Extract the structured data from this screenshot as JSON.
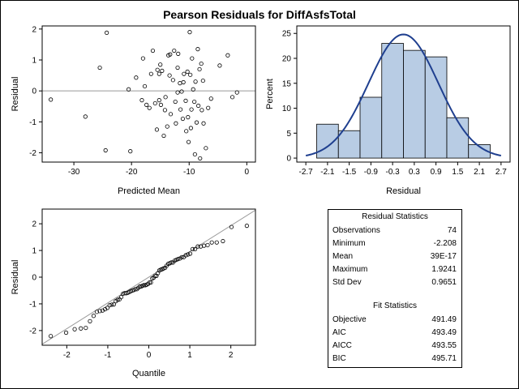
{
  "title": "Pearson Residuals for DiffAsfsTotal",
  "colors": {
    "bar_fill": "#b8cce4",
    "curve": "#1f3f8f",
    "ref_line": "#999999",
    "axis": "#000000"
  },
  "chart_data": [
    {
      "type": "scatter",
      "xlabel": "Predicted Mean",
      "ylabel": "Residual",
      "xlim": [
        -35.5,
        1.5
      ],
      "ylim": [
        -2.3,
        2.1
      ],
      "xticks": [
        -30,
        -20,
        -10,
        0
      ],
      "yticks": [
        -2,
        -1,
        0,
        1,
        2
      ],
      "reference_line_y": 0,
      "points": [
        [
          -34,
          -0.28
        ],
        [
          -28,
          -0.83
        ],
        [
          -25.5,
          0.75
        ],
        [
          -24.3,
          1.88
        ],
        [
          -24.5,
          -1.92
        ],
        [
          -20.2,
          -1.95
        ],
        [
          -20.5,
          0.05
        ],
        [
          -19.2,
          0.43
        ],
        [
          -18.2,
          -0.3
        ],
        [
          -18,
          1.05
        ],
        [
          -17.7,
          0.15
        ],
        [
          -17.4,
          -0.45
        ],
        [
          -16.6,
          0.55
        ],
        [
          -16.3,
          1.3
        ],
        [
          -15.9,
          -0.4
        ],
        [
          -15.6,
          -1.25
        ],
        [
          -15.5,
          0.68
        ],
        [
          -15.2,
          0.55
        ],
        [
          -15.0,
          0.85
        ],
        [
          -14.7,
          0.65
        ],
        [
          -14.9,
          -0.45
        ],
        [
          -14.4,
          -1.45
        ],
        [
          -14.1,
          -0.2
        ],
        [
          -14.2,
          -0.62
        ],
        [
          -13.8,
          -1.15
        ],
        [
          -13.6,
          1.15
        ],
        [
          -13.4,
          0.5
        ],
        [
          -13.3,
          1.18
        ],
        [
          -12.8,
          0.35
        ],
        [
          -12.6,
          1.3
        ],
        [
          -12.4,
          -0.35
        ],
        [
          -12.3,
          -1.05
        ],
        [
          -12.0,
          0.75
        ],
        [
          -11.9,
          1.2
        ],
        [
          -11.6,
          0.25
        ],
        [
          -11.5,
          -0.6
        ],
        [
          -11.3,
          -0.02
        ],
        [
          -11.1,
          -0.9
        ],
        [
          -10.9,
          0.55
        ],
        [
          -10.6,
          -0.32
        ],
        [
          -10.5,
          -1.3
        ],
        [
          -10.3,
          0.62
        ],
        [
          -10.2,
          -0.85
        ],
        [
          -10.1,
          -1.65
        ],
        [
          -9.9,
          1.9
        ],
        [
          -9.8,
          0.52
        ],
        [
          -9.7,
          -1.2
        ],
        [
          -9.5,
          1.05
        ],
        [
          -9.3,
          0.05
        ],
        [
          -9.1,
          -0.35
        ],
        [
          -9.0,
          -2.05
        ],
        [
          -8.9,
          0.3
        ],
        [
          -8.7,
          -1.02
        ],
        [
          -8.5,
          1.35
        ],
        [
          -8.4,
          -0.48
        ],
        [
          -8.2,
          0.7
        ],
        [
          -8.1,
          -2.18
        ],
        [
          -7.9,
          0.88
        ],
        [
          -7.8,
          -0.62
        ],
        [
          -7.6,
          0.33
        ],
        [
          -7.5,
          -1.05
        ],
        [
          -7.1,
          -1.85
        ],
        [
          -6.7,
          -0.55
        ],
        [
          -6.2,
          -0.25
        ],
        [
          -4.7,
          0.82
        ],
        [
          -3.3,
          1.15
        ],
        [
          -2.5,
          -0.2
        ],
        [
          -1.7,
          -0.05
        ],
        [
          -15.2,
          -0.3
        ],
        [
          -13.2,
          -0.75
        ],
        [
          -16.9,
          -0.55
        ],
        [
          -12.0,
          -0.05
        ],
        [
          -11.0,
          0.28
        ],
        [
          -9.6,
          -0.6
        ]
      ]
    },
    {
      "type": "bar",
      "subtype": "histogram",
      "xlabel": "Residual",
      "ylabel": "Percent",
      "bin_edges": [
        -2.4,
        -1.8,
        -1.2,
        -0.6,
        0.0,
        0.6,
        1.2,
        1.8,
        2.4
      ],
      "values": [
        6.8,
        5.5,
        12.2,
        23.0,
        21.6,
        20.3,
        8.1,
        2.7
      ],
      "xlim": [
        -2.95,
        2.95
      ],
      "ylim": [
        -0.8,
        26.5
      ],
      "xticks": [
        -2.7,
        -2.1,
        -1.5,
        -0.9,
        -0.3,
        0.3,
        0.9,
        1.5,
        2.1,
        2.7
      ],
      "xtick_labels": [
        "-2.7",
        "-2.1",
        "-1.5",
        "-0.9",
        "-0.3",
        "0.3",
        "0.9",
        "1.5",
        "2.1",
        "2.7"
      ],
      "yticks": [
        0,
        5,
        10,
        15,
        20,
        25
      ],
      "normal_curve": {
        "mean": 0.0,
        "sd": 0.9651,
        "peak_percent": 24.8
      }
    },
    {
      "type": "scatter",
      "subtype": "qq",
      "xlabel": "Quantile",
      "ylabel": "Residual",
      "xlim": [
        -2.6,
        2.6
      ],
      "ylim": [
        -2.55,
        2.55
      ],
      "xticks": [
        -2,
        -1,
        0,
        1,
        2
      ],
      "yticks": [
        -2,
        -1,
        0,
        1,
        2
      ],
      "reference_line": {
        "intercept": 0,
        "slope": 0.9651
      },
      "sample": [
        -2.208,
        -2.08,
        -1.95,
        -1.92,
        -1.9,
        -1.65,
        -1.45,
        -1.3,
        -1.27,
        -1.25,
        -1.2,
        -1.15,
        -1.05,
        -1.03,
        -1.02,
        -0.9,
        -0.85,
        -0.83,
        -0.75,
        -0.62,
        -0.6,
        -0.6,
        -0.58,
        -0.55,
        -0.52,
        -0.5,
        -0.48,
        -0.45,
        -0.45,
        -0.4,
        -0.35,
        -0.35,
        -0.32,
        -0.3,
        -0.3,
        -0.28,
        -0.25,
        -0.2,
        -0.2,
        -0.05,
        -0.02,
        0.05,
        0.05,
        0.15,
        0.25,
        0.28,
        0.3,
        0.33,
        0.35,
        0.43,
        0.5,
        0.52,
        0.55,
        0.55,
        0.62,
        0.65,
        0.68,
        0.7,
        0.75,
        0.75,
        0.82,
        0.85,
        0.88,
        1.05,
        1.05,
        1.15,
        1.15,
        1.18,
        1.2,
        1.3,
        1.3,
        1.35,
        1.88,
        1.9241
      ]
    }
  ],
  "residual_statistics": {
    "title": "Residual Statistics",
    "rows": [
      {
        "label": "Observations",
        "value": "74"
      },
      {
        "label": "Minimum",
        "value": "-2.208"
      },
      {
        "label": "Mean",
        "value": "39E-17"
      },
      {
        "label": "Maximum",
        "value": "1.9241"
      },
      {
        "label": "Std Dev",
        "value": "0.9651"
      }
    ]
  },
  "fit_statistics": {
    "title": "Fit Statistics",
    "rows": [
      {
        "label": "Objective",
        "value": "491.49"
      },
      {
        "label": "AIC",
        "value": "493.49"
      },
      {
        "label": "AICC",
        "value": "493.55"
      },
      {
        "label": "BIC",
        "value": "495.71"
      }
    ]
  }
}
